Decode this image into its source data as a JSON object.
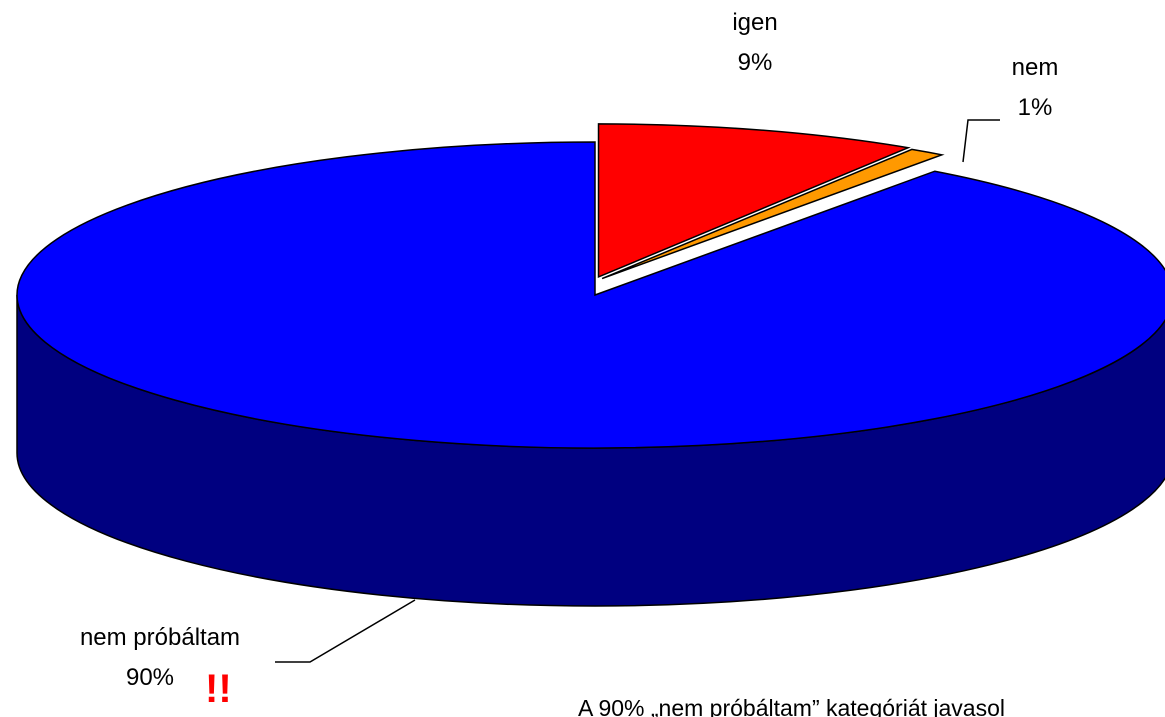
{
  "chart_data": {
    "type": "pie",
    "categories": [
      "igen",
      "nem",
      "nem próbáltam"
    ],
    "values": [
      9,
      1,
      90
    ],
    "value_labels": [
      "9%",
      "1%",
      "90%"
    ],
    "colors": [
      "#ff0000",
      "#ff9900",
      "#0000ff"
    ],
    "annotations": [
      "!!",
      "A 90% „nem próbáltam” kategóriát javasol"
    ]
  }
}
